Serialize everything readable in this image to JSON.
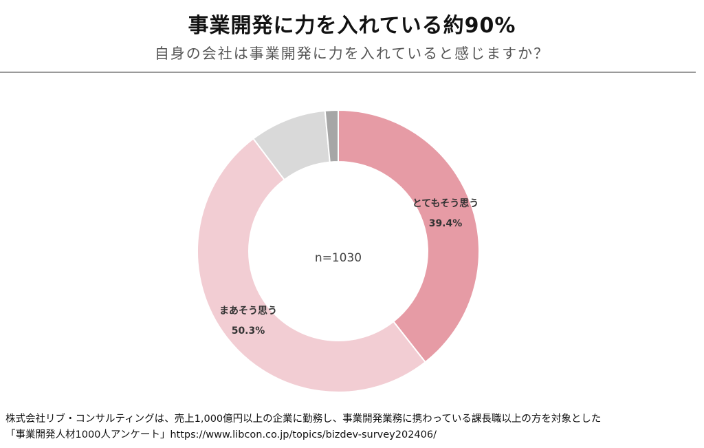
{
  "header": {
    "title": "事業開発に力を入れている約90%",
    "subtitle": "自身の会社は事業開発に力を入れていると感じますか？"
  },
  "chart_data": {
    "type": "pie",
    "center_label": "n=1030",
    "slices": [
      {
        "label": "とてもそう思う",
        "value_label": "39.4%",
        "value": 39.4,
        "color": "#e69ba5"
      },
      {
        "label": "まあそう思う",
        "value_label": "50.3%",
        "value": 50.3,
        "color": "#f2cdd3"
      },
      {
        "label": "",
        "value_label": "",
        "value": 8.8,
        "color": "#d9d9d9"
      },
      {
        "label": "",
        "value_label": "",
        "value": 1.5,
        "color": "#a6a6a6"
      }
    ]
  },
  "footer": {
    "line1": "株式会社リブ・コンサルティングは、売上1,000億円以上の企業に勤務し、事業開発業務に携わっている課長職以上の方を対象とした",
    "line2": "「事業開発人材1000人アンケート」https://www.libcon.co.jp/topics/bizdev-survey202406/"
  }
}
